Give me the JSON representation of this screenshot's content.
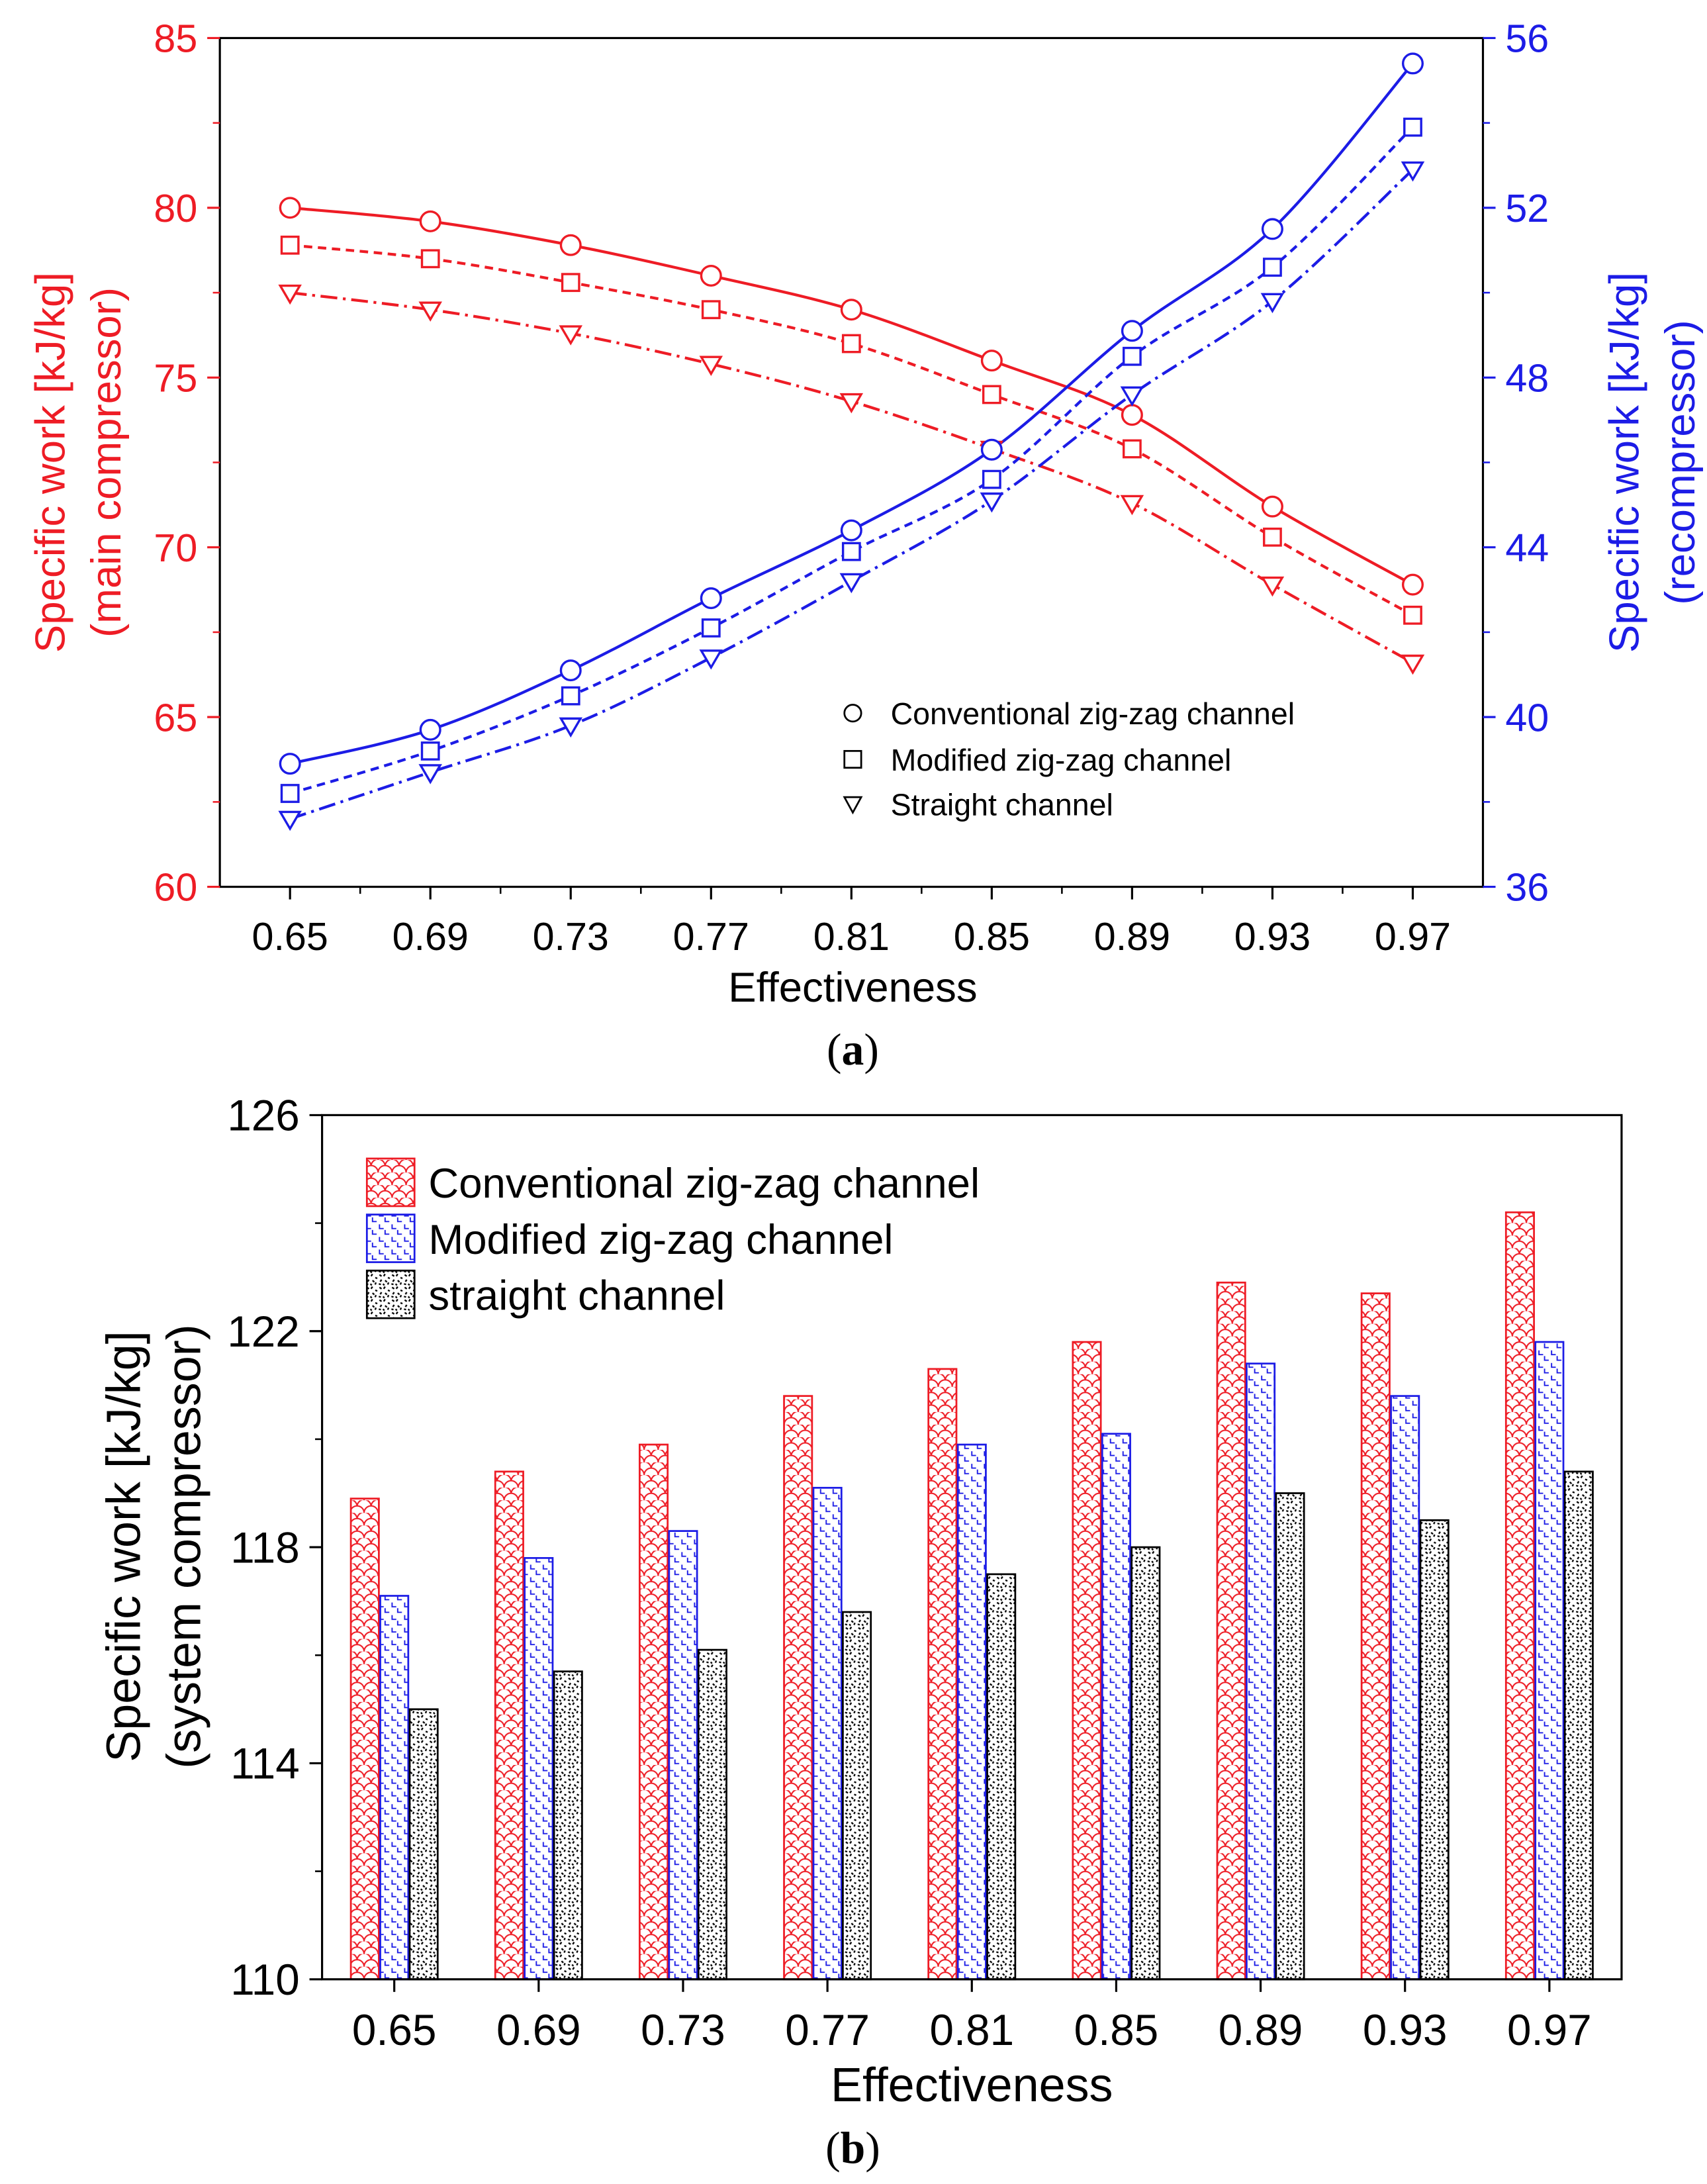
{
  "chart_data": [
    {
      "panel": "a",
      "caption_letter": "a",
      "type": "line",
      "xlabel": "Effectiveness",
      "categories": [
        "0.65",
        "0.69",
        "0.73",
        "0.77",
        "0.81",
        "0.85",
        "0.89",
        "0.93",
        "0.97"
      ],
      "x": [
        0.65,
        0.69,
        0.73,
        0.77,
        0.81,
        0.85,
        0.89,
        0.93,
        0.97
      ],
      "xlim": [
        0.63,
        0.99
      ],
      "ylabel_left_line1": "Specific work [kJ/kg]",
      "ylabel_left_line2": "(main compressor)",
      "ylim_left": [
        60,
        85
      ],
      "yticks_left": [
        "60",
        "65",
        "70",
        "75",
        "80",
        "85"
      ],
      "ylabel_right_line1": "Specific work [kJ/kg]",
      "ylabel_right_line2": "(recompressor)",
      "ylim_right": [
        36,
        56
      ],
      "yticks_right": [
        "36",
        "40",
        "44",
        "48",
        "52",
        "56"
      ],
      "left_color": "#ee1c25",
      "right_color": "#1c1ce6",
      "legend": [
        {
          "label": "Conventional zig-zag channel",
          "marker": "circle"
        },
        {
          "label": "Modified zig-zag channel",
          "marker": "square"
        },
        {
          "label": "Straight channel",
          "marker": "triangle-down"
        }
      ],
      "series": [
        {
          "name": "Conventional zig-zag channel",
          "axis": "left",
          "marker": "circle",
          "line": "solid",
          "values": [
            80.0,
            79.6,
            78.9,
            78.0,
            77.0,
            75.5,
            73.9,
            71.2,
            68.9
          ]
        },
        {
          "name": "Modified zig-zag channel",
          "axis": "left",
          "marker": "square",
          "line": "dashed",
          "values": [
            78.9,
            78.5,
            77.8,
            77.0,
            76.0,
            74.5,
            72.9,
            70.3,
            68.0
          ]
        },
        {
          "name": "Straight channel",
          "axis": "left",
          "marker": "triangle-down",
          "line": "dashdot",
          "values": [
            77.5,
            77.0,
            76.3,
            75.4,
            74.3,
            72.9,
            71.3,
            68.9,
            66.6
          ]
        },
        {
          "name": "Conventional zig-zag channel",
          "axis": "right",
          "marker": "circle",
          "line": "solid",
          "values": [
            38.9,
            39.7,
            41.1,
            42.8,
            44.4,
            46.3,
            49.1,
            51.5,
            55.4
          ]
        },
        {
          "name": "Modified zig-zag channel",
          "axis": "right",
          "marker": "square",
          "line": "dashed",
          "values": [
            38.2,
            39.2,
            40.5,
            42.1,
            43.9,
            45.6,
            48.5,
            50.6,
            53.9
          ]
        },
        {
          "name": "Straight channel",
          "axis": "right",
          "marker": "triangle-down",
          "line": "dashdot",
          "values": [
            37.6,
            38.7,
            39.8,
            41.4,
            43.2,
            45.1,
            47.6,
            49.8,
            52.9
          ]
        }
      ]
    },
    {
      "panel": "b",
      "caption_letter": "b",
      "type": "bar",
      "xlabel": "Effectiveness",
      "ylabel_line1": "Specific work [kJ/kg]",
      "ylabel_line2": "(system compressor)",
      "categories": [
        "0.65",
        "0.69",
        "0.73",
        "0.77",
        "0.81",
        "0.85",
        "0.89",
        "0.93",
        "0.97"
      ],
      "ylim": [
        110,
        126
      ],
      "yticks": [
        "110",
        "114",
        "118",
        "122",
        "126"
      ],
      "legend": [
        {
          "label": "Conventional zig-zag channel",
          "pattern": "scales",
          "color": "#ee1c25"
        },
        {
          "label": "Modified zig-zag channel",
          "pattern": "steps",
          "color": "#1c1ce6"
        },
        {
          "label": "straight channel",
          "pattern": "speckle",
          "color": "#000000"
        }
      ],
      "series": [
        {
          "name": "Conventional zig-zag channel",
          "color": "#ee1c25",
          "pattern": "scales",
          "values": [
            118.9,
            119.4,
            119.9,
            120.8,
            121.3,
            121.8,
            122.9,
            122.7,
            124.2
          ]
        },
        {
          "name": "Modified zig-zag channel",
          "color": "#1c1ce6",
          "pattern": "steps",
          "values": [
            117.1,
            117.8,
            118.3,
            119.1,
            119.9,
            120.1,
            121.4,
            120.8,
            121.8
          ]
        },
        {
          "name": "straight channel",
          "color": "#000000",
          "pattern": "speckle",
          "values": [
            115.0,
            115.7,
            116.1,
            116.8,
            117.5,
            118.0,
            119.0,
            118.5,
            119.4
          ]
        }
      ]
    }
  ]
}
